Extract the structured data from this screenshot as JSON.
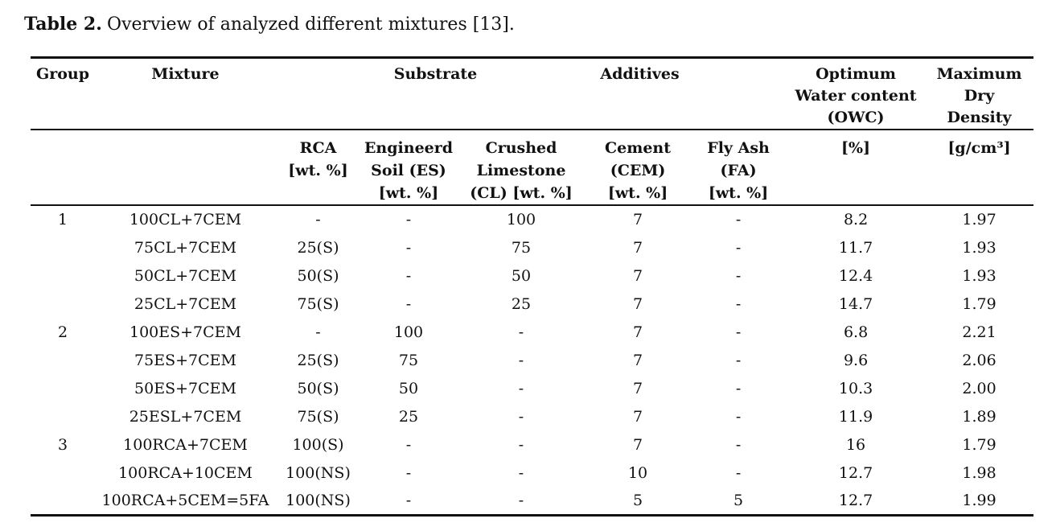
{
  "caption": {
    "label": "Table 2.",
    "text": "Overview of analyzed different mixtures [13]."
  },
  "table": {
    "header_row1": {
      "group": "Group",
      "mixture": "Mixture",
      "substrate": "Substrate",
      "additives": "Additives",
      "owc": "Optimum\nWater content\n(OWC)",
      "max_dry_density": "Maximum\nDry\nDensity"
    },
    "header_row2": {
      "rca": "RCA\n[wt. %]",
      "engineered_soil": "Engineerd\nSoil (ES)\n[wt. %]",
      "crushed_limestone": "Crushed\nLimestone\n(CL) [wt. %]",
      "cement": "Cement\n(CEM)\n[wt. %]",
      "fly_ash": "Fly Ash\n(FA)\n[wt. %]",
      "owc_unit": "[%]",
      "density_unit": "[g/cm³]"
    },
    "columns": [
      "group",
      "mixture",
      "rca",
      "engineered_soil",
      "crushed_limestone",
      "cement",
      "fly_ash",
      "owc",
      "max_dry_density"
    ],
    "rows": [
      [
        "1",
        "100CL+7CEM",
        "-",
        "-",
        "100",
        "7",
        "-",
        "8.2",
        "1.97"
      ],
      [
        "",
        "75CL+7CEM",
        "25(S)",
        "-",
        "75",
        "7",
        "-",
        "11.7",
        "1.93"
      ],
      [
        "",
        "50CL+7CEM",
        "50(S)",
        "-",
        "50",
        "7",
        "-",
        "12.4",
        "1.93"
      ],
      [
        "",
        "25CL+7CEM",
        "75(S)",
        "-",
        "25",
        "7",
        "-",
        "14.7",
        "1.79"
      ],
      [
        "2",
        "100ES+7CEM",
        "-",
        "100",
        "-",
        "7",
        "-",
        "6.8",
        "2.21"
      ],
      [
        "",
        "75ES+7CEM",
        "25(S)",
        "75",
        "-",
        "7",
        "-",
        "9.6",
        "2.06"
      ],
      [
        "",
        "50ES+7CEM",
        "50(S)",
        "50",
        "-",
        "7",
        "-",
        "10.3",
        "2.00"
      ],
      [
        "",
        "25ESL+7CEM",
        "75(S)",
        "25",
        "-",
        "7",
        "-",
        "11.9",
        "1.89"
      ],
      [
        "3",
        "100RCA+7CEM",
        "100(S)",
        "-",
        "-",
        "7",
        "-",
        "16",
        "1.79"
      ],
      [
        "",
        "100RCA+10CEM",
        "100(NS)",
        "-",
        "-",
        "10",
        "-",
        "12.7",
        "1.98"
      ],
      [
        "",
        "100RCA+5CEM=5FA",
        "100(NS)",
        "-",
        "-",
        "5",
        "5",
        "12.7",
        "1.99"
      ]
    ]
  }
}
